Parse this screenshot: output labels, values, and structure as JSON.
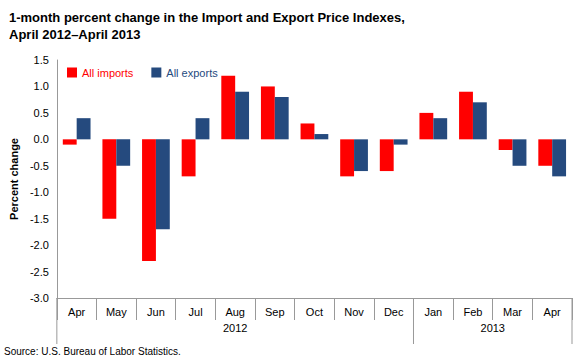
{
  "chart_data": {
    "type": "bar",
    "title": "1-month percent change in the Import and Export Price Indexes,\nApril 2012–April 2013",
    "y_label": "Percent change",
    "source": "Source: U.S. Bureau of Labor Statistics.",
    "categories": [
      "Apr",
      "May",
      "Jun",
      "Jul",
      "Aug",
      "Sep",
      "Oct",
      "Nov",
      "Dec",
      "Jan",
      "Feb",
      "Mar",
      "Apr"
    ],
    "category_groups": [
      {
        "label": "2012",
        "count": 9
      },
      {
        "label": "2013",
        "count": 4
      }
    ],
    "series": [
      {
        "name": "All imports",
        "color": "#ff0000",
        "values": [
          -0.1,
          -1.5,
          -2.3,
          -0.7,
          1.2,
          1.0,
          0.3,
          -0.7,
          -0.6,
          0.5,
          0.9,
          -0.2,
          -0.5
        ]
      },
      {
        "name": "All exports",
        "color": "#254a7e",
        "values": [
          0.4,
          -0.5,
          -1.7,
          0.4,
          0.9,
          0.8,
          0.1,
          -0.6,
          -0.1,
          0.4,
          0.7,
          -0.5,
          -0.7
        ]
      }
    ],
    "ylim": [
      -3,
      1.5
    ],
    "yticks": [
      {
        "value": -3,
        "label": "-3.0"
      },
      -2.5,
      {
        "value": -2,
        "label": "-2.0"
      },
      -1.5,
      {
        "value": -1,
        "label": "-1.0"
      },
      -0.5,
      {
        "value": 0,
        "label": "0.0"
      },
      0.5,
      {
        "value": 1,
        "label": "1.0"
      },
      1.5
    ],
    "grid": false,
    "legend": "upper left"
  }
}
